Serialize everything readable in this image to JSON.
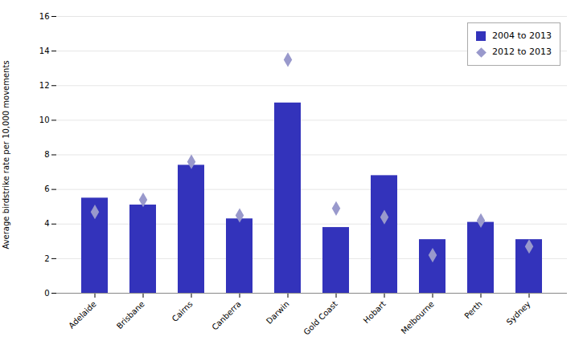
{
  "chart_data": {
    "type": "bar",
    "categories": [
      "Adelaide",
      "Brisbane",
      "Cairns",
      "Canberra",
      "Darwin",
      "Gold Coast",
      "Hobart",
      "Melbourne",
      "Perth",
      "Sydney"
    ],
    "series": [
      {
        "name": "2004 to 2013",
        "type": "bar",
        "color": "#3333BB",
        "values": [
          5.5,
          5.1,
          7.4,
          4.3,
          11.0,
          3.8,
          6.8,
          3.1,
          4.1,
          3.1
        ]
      },
      {
        "name": "2012 to 2013",
        "type": "scatter",
        "marker": "diamond",
        "color": "#9999CC",
        "values": [
          4.7,
          5.4,
          7.6,
          4.5,
          13.5,
          4.9,
          4.4,
          2.2,
          4.2,
          2.7
        ]
      }
    ],
    "ylabel": "Average birdstrike rate per 10,000 movements",
    "ylim": [
      0,
      16
    ],
    "yticks": [
      0,
      2,
      4,
      6,
      8,
      10,
      12,
      14,
      16
    ],
    "grid": true,
    "legend": "upper right"
  }
}
